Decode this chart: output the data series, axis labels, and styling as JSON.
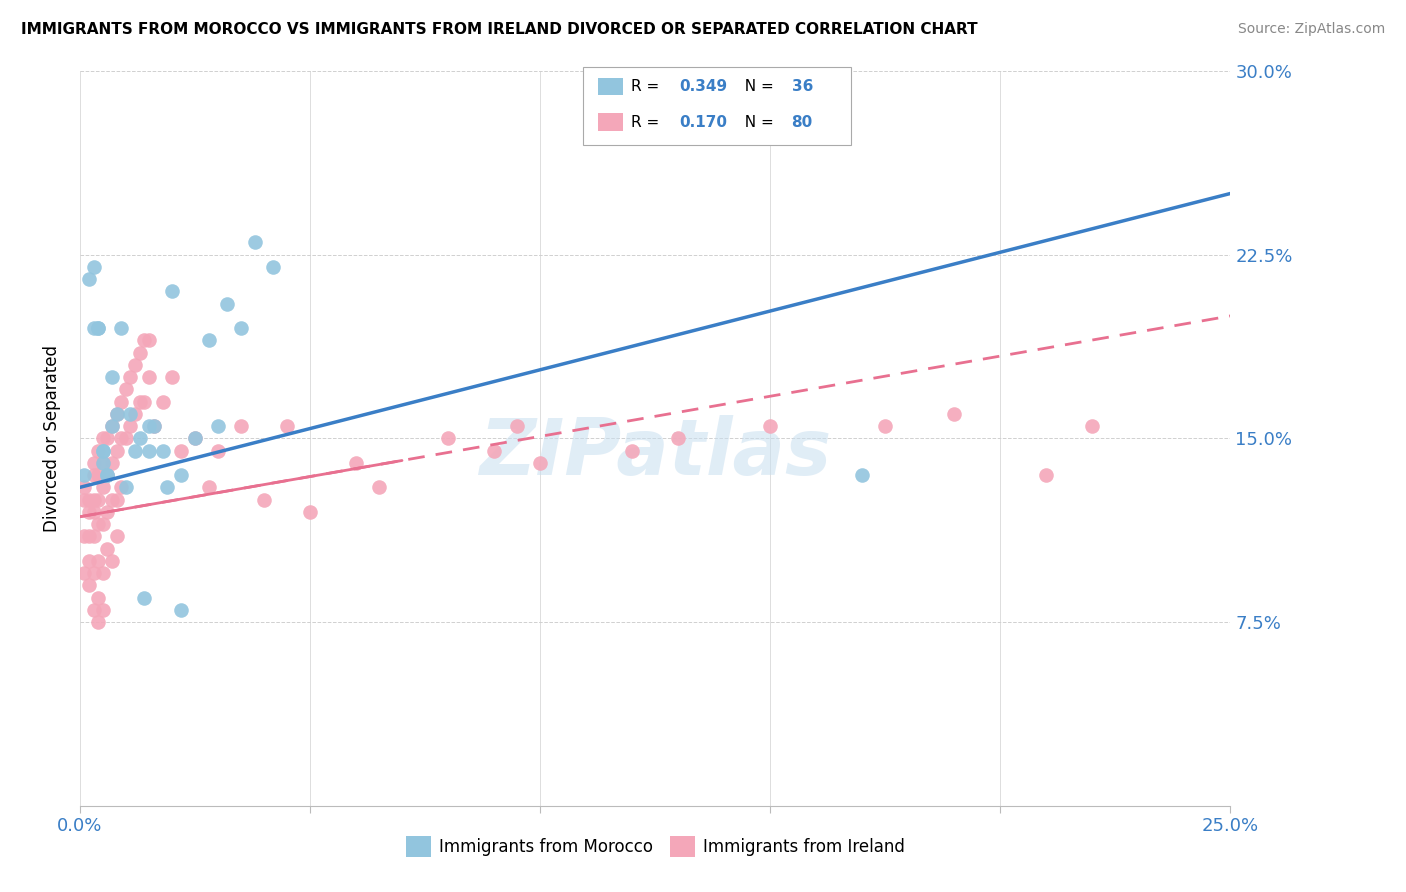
{
  "title": "IMMIGRANTS FROM MOROCCO VS IMMIGRANTS FROM IRELAND DIVORCED OR SEPARATED CORRELATION CHART",
  "source": "Source: ZipAtlas.com",
  "ylabel": "Divorced or Separated",
  "xlim": [
    0,
    0.25
  ],
  "ylim": [
    0,
    0.3
  ],
  "x_ticks": [
    0.0,
    0.05,
    0.1,
    0.15,
    0.2,
    0.25
  ],
  "y_ticks": [
    0.0,
    0.075,
    0.15,
    0.225,
    0.3
  ],
  "y_tick_labels": [
    "",
    "7.5%",
    "15.0%",
    "22.5%",
    "30.0%"
  ],
  "morocco_R": 0.349,
  "morocco_N": 36,
  "ireland_R": 0.17,
  "ireland_N": 80,
  "morocco_color": "#92C5DE",
  "ireland_color": "#F4A7B9",
  "morocco_line_color": "#3A7EC6",
  "ireland_line_color": "#E87090",
  "ireland_line_style": "dashed",
  "watermark_text": "ZIPatlas",
  "morocco_line_start_y": 0.13,
  "morocco_line_end_y": 0.25,
  "ireland_line_start_y": 0.118,
  "ireland_line_end_y": 0.2,
  "morocco_points_x": [
    0.001,
    0.002,
    0.003,
    0.003,
    0.004,
    0.004,
    0.005,
    0.005,
    0.005,
    0.006,
    0.006,
    0.007,
    0.007,
    0.008,
    0.009,
    0.01,
    0.011,
    0.012,
    0.013,
    0.014,
    0.015,
    0.015,
    0.016,
    0.018,
    0.019,
    0.02,
    0.022,
    0.025,
    0.028,
    0.03,
    0.032,
    0.035,
    0.038,
    0.042,
    0.17,
    0.022
  ],
  "morocco_points_y": [
    0.135,
    0.215,
    0.22,
    0.195,
    0.195,
    0.195,
    0.145,
    0.145,
    0.14,
    0.135,
    0.135,
    0.175,
    0.155,
    0.16,
    0.195,
    0.13,
    0.16,
    0.145,
    0.15,
    0.085,
    0.155,
    0.145,
    0.155,
    0.145,
    0.13,
    0.21,
    0.135,
    0.15,
    0.19,
    0.155,
    0.205,
    0.195,
    0.23,
    0.22,
    0.135,
    0.08
  ],
  "ireland_points_x": [
    0.001,
    0.001,
    0.001,
    0.001,
    0.002,
    0.002,
    0.002,
    0.002,
    0.002,
    0.003,
    0.003,
    0.003,
    0.003,
    0.003,
    0.003,
    0.003,
    0.004,
    0.004,
    0.004,
    0.004,
    0.004,
    0.004,
    0.004,
    0.005,
    0.005,
    0.005,
    0.005,
    0.005,
    0.005,
    0.006,
    0.006,
    0.006,
    0.006,
    0.007,
    0.007,
    0.007,
    0.007,
    0.008,
    0.008,
    0.008,
    0.008,
    0.009,
    0.009,
    0.009,
    0.01,
    0.01,
    0.011,
    0.011,
    0.012,
    0.012,
    0.013,
    0.013,
    0.014,
    0.014,
    0.015,
    0.015,
    0.016,
    0.018,
    0.02,
    0.022,
    0.025,
    0.028,
    0.03,
    0.035,
    0.04,
    0.045,
    0.05,
    0.06,
    0.065,
    0.08,
    0.09,
    0.095,
    0.1,
    0.12,
    0.13,
    0.15,
    0.175,
    0.19,
    0.21,
    0.22
  ],
  "ireland_points_y": [
    0.125,
    0.13,
    0.11,
    0.095,
    0.125,
    0.12,
    0.11,
    0.1,
    0.09,
    0.14,
    0.135,
    0.125,
    0.12,
    0.11,
    0.095,
    0.08,
    0.145,
    0.135,
    0.125,
    0.115,
    0.1,
    0.085,
    0.075,
    0.15,
    0.14,
    0.13,
    0.115,
    0.095,
    0.08,
    0.15,
    0.135,
    0.12,
    0.105,
    0.155,
    0.14,
    0.125,
    0.1,
    0.16,
    0.145,
    0.125,
    0.11,
    0.165,
    0.15,
    0.13,
    0.17,
    0.15,
    0.175,
    0.155,
    0.18,
    0.16,
    0.185,
    0.165,
    0.19,
    0.165,
    0.19,
    0.175,
    0.155,
    0.165,
    0.175,
    0.145,
    0.15,
    0.13,
    0.145,
    0.155,
    0.125,
    0.155,
    0.12,
    0.14,
    0.13,
    0.15,
    0.145,
    0.155,
    0.14,
    0.145,
    0.15,
    0.155,
    0.155,
    0.16,
    0.135,
    0.155
  ]
}
